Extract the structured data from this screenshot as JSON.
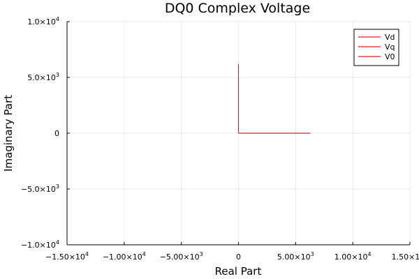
{
  "chart_data": {
    "type": "line",
    "title": "DQ0 Complex Voltage",
    "xlabel": "Real Part",
    "ylabel": "Imaginary Part",
    "xlim": [
      -15000,
      15000
    ],
    "ylim": [
      -10000,
      10000
    ],
    "x_ticks": [
      {
        "value": -15000,
        "mantissa": "−1.50×10",
        "exp": "4"
      },
      {
        "value": -10000,
        "mantissa": "−1.00×10",
        "exp": "4"
      },
      {
        "value": -5000,
        "mantissa": "−5.00×10",
        "exp": "3"
      },
      {
        "value": 0,
        "mantissa": "0",
        "exp": ""
      },
      {
        "value": 5000,
        "mantissa": "5.00×10",
        "exp": "3"
      },
      {
        "value": 10000,
        "mantissa": "1.00×10",
        "exp": "4"
      },
      {
        "value": 15000,
        "mantissa": "1.50×10",
        "exp": "4"
      }
    ],
    "y_ticks": [
      {
        "value": 10000,
        "mantissa": "1.0×10",
        "exp": "4"
      },
      {
        "value": 5000,
        "mantissa": "5.0×10",
        "exp": "3"
      },
      {
        "value": 0,
        "mantissa": "0",
        "exp": ""
      },
      {
        "value": -5000,
        "mantissa": "−5.0×10",
        "exp": "3"
      },
      {
        "value": -10000,
        "mantissa": "−1.0×10",
        "exp": "4"
      }
    ],
    "grid": true,
    "legend_position": "top-right",
    "series": [
      {
        "name": "Vd",
        "color": "#e41a1c",
        "points": [
          [
            0,
            6200
          ],
          [
            0,
            0
          ]
        ]
      },
      {
        "name": "Vq",
        "color": "#e41a1c",
        "points": [
          [
            0,
            0
          ],
          [
            6300,
            0
          ]
        ]
      },
      {
        "name": "V0",
        "color": "#e41a1c",
        "points": [
          [
            0,
            0
          ],
          [
            0,
            0
          ]
        ]
      }
    ]
  }
}
